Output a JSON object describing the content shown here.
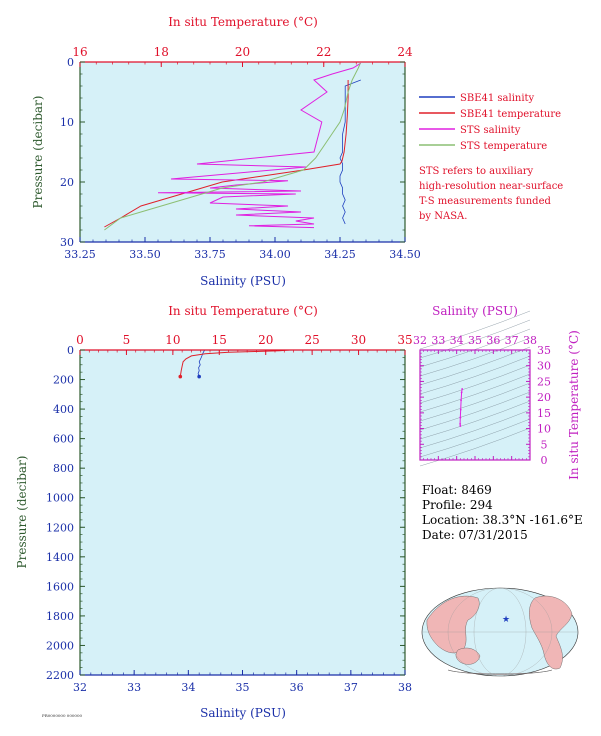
{
  "colors": {
    "salinity_axis": "#1a2fa8",
    "temperature_axis": "#e0102a",
    "pressure_axis": "#2e5a2e",
    "ts_axis": "#c020c0",
    "plot_bg": "#d6f1f8",
    "sbe_sal": "#1f3fbf",
    "sbe_temp": "#e0202a",
    "sts_sal": "#e020e0",
    "sts_temp": "#8cbf73",
    "land": "#f0b6b6",
    "ocean": "#d6f1f8"
  },
  "legend": [
    {
      "label": "SBE41 salinity",
      "color": "#1f3fbf"
    },
    {
      "label": "SBE41 temperature",
      "color": "#e0202a"
    },
    {
      "label": "STS salinity",
      "color": "#e020e0"
    },
    {
      "label": "STS temperature",
      "color": "#8cbf73"
    }
  ],
  "note": [
    "STS refers to auxiliary",
    "high-resolution near-surface",
    "T-S measurements funded",
    "by NASA."
  ],
  "info": {
    "float": "Float:  8469",
    "profile": "Profile:  294",
    "location": "Location:  38.3°N  -161.6°E",
    "date": "Date:  07/31/2015"
  },
  "footer_code": "PR0000000 000000",
  "chart_data": [
    {
      "type": "line",
      "panel": "near-surface",
      "title": "In situ Temperature (°C)",
      "xlabel": "Salinity (PSU)",
      "ylabel": "Pressure (decibar)",
      "top_label": "In situ Temperature (°C)",
      "sal_ticks": [
        "33.25",
        "33.50",
        "33.75",
        "34.00",
        "34.25",
        "34.50"
      ],
      "temp_ticks": [
        "16",
        "18",
        "20",
        "22",
        "24"
      ],
      "p_ticks": [
        "0",
        "10",
        "20",
        "30"
      ],
      "xlim_salinity": [
        33.25,
        34.5
      ],
      "xlim_temperature": [
        16,
        24
      ],
      "ylim_pressure": [
        30,
        0
      ],
      "series": [
        {
          "name": "SBE41 salinity",
          "x": [
            34.33,
            34.27,
            34.27,
            34.27,
            34.27,
            34.26,
            34.26,
            34.26,
            34.25,
            34.26,
            34.26,
            34.25,
            34.25,
            34.26,
            34.26,
            34.27,
            34.26,
            34.27,
            34.26,
            34.27
          ],
          "y": [
            3,
            4,
            6,
            8,
            10,
            12,
            14,
            15,
            16,
            17,
            18,
            19,
            20,
            21,
            22,
            23,
            24,
            25,
            26,
            27
          ]
        },
        {
          "name": "SBE41 temperature",
          "x": [
            22.6,
            22.6,
            22.58,
            22.55,
            22.5,
            22.45,
            22.4,
            21.5,
            20.5,
            19.5,
            18.5,
            17.5,
            17.0,
            16.6
          ],
          "y": [
            3,
            6,
            9,
            12,
            15,
            16.5,
            17,
            18,
            19,
            20,
            22,
            24,
            26,
            27.5
          ]
        },
        {
          "name": "STS salinity",
          "x": [
            34.33,
            34.3,
            34.22,
            34.15,
            34.2,
            34.1,
            34.18,
            34.15,
            33.7,
            34.12,
            33.6,
            34.05,
            33.85,
            33.75,
            34.1,
            33.55,
            34.08,
            33.8,
            33.75,
            34.05,
            33.85,
            34.1,
            33.85,
            34.15,
            34.08,
            34.15,
            33.9,
            34.15
          ],
          "y": [
            0.2,
            1,
            2,
            3,
            5,
            8,
            10,
            15,
            17,
            17.5,
            19.5,
            19.8,
            20.5,
            21,
            21.5,
            21.8,
            22,
            22.5,
            23.5,
            24,
            24.5,
            25,
            25.5,
            26,
            26.5,
            27,
            27.3,
            27.6
          ]
        },
        {
          "name": "STS temperature",
          "x": [
            22.9,
            22.85,
            22.7,
            22.6,
            22.5,
            22.4,
            22.2,
            22.0,
            21.8,
            21.5,
            21.0,
            20.5,
            20.0,
            19.5,
            19.0,
            18.5,
            18.0,
            17.5,
            17.0,
            16.6
          ],
          "y": [
            0.2,
            1,
            3,
            5,
            8,
            10,
            12,
            14,
            16,
            18,
            19,
            20,
            20.5,
            21,
            22,
            23,
            24,
            25,
            26,
            28
          ]
        }
      ]
    },
    {
      "type": "line",
      "panel": "full-profile",
      "xlabel": "Salinity (PSU)",
      "ylabel": "Pressure (decibar)",
      "top_label": "In situ Temperature (°C)",
      "sal_ticks": [
        "32",
        "33",
        "34",
        "35",
        "36",
        "37",
        "38"
      ],
      "temp_ticks": [
        "0",
        "5",
        "10",
        "15",
        "20",
        "25",
        "30",
        "35"
      ],
      "p_ticks": [
        "0",
        "200",
        "400",
        "600",
        "800",
        "1000",
        "1200",
        "1400",
        "1600",
        "1800",
        "2000",
        "2200"
      ],
      "xlim_salinity": [
        32,
        38
      ],
      "xlim_temperature": [
        0,
        35
      ],
      "ylim_pressure": [
        2200,
        0
      ],
      "series": [
        {
          "name": "SBE41 salinity",
          "x": [
            34.3,
            34.27,
            34.24,
            34.2,
            34.22,
            34.19,
            34.2,
            34.18,
            34.2
          ],
          "y": [
            0,
            20,
            50,
            80,
            100,
            120,
            140,
            160,
            180
          ]
        },
        {
          "name": "SBE41 temperature",
          "x": [
            22.6,
            21.5,
            19.0,
            16.0,
            13.5,
            12.0,
            11.4,
            11.1,
            11.0,
            10.9,
            10.8
          ],
          "y": [
            0,
            5,
            10,
            15,
            25,
            40,
            60,
            80,
            110,
            140,
            180
          ]
        }
      ]
    },
    {
      "type": "scatter",
      "panel": "t-s-diagram",
      "xlabel": "Salinity (PSU)",
      "ylabel": "In situ Temperature (°C)",
      "x_ticks": [
        "32",
        "33",
        "34",
        "35",
        "36",
        "37",
        "38"
      ],
      "y_ticks": [
        "0",
        "5",
        "10",
        "15",
        "20",
        "25",
        "30",
        "35"
      ],
      "xlim": [
        32,
        38
      ],
      "ylim": [
        0,
        35
      ],
      "series": [
        {
          "name": "T-S",
          "x": [
            34.2,
            34.19,
            34.2,
            34.22,
            34.24,
            34.27,
            34.3
          ],
          "y": [
            10.8,
            11.5,
            13.5,
            16,
            19,
            21.5,
            22.6
          ]
        }
      ]
    }
  ]
}
